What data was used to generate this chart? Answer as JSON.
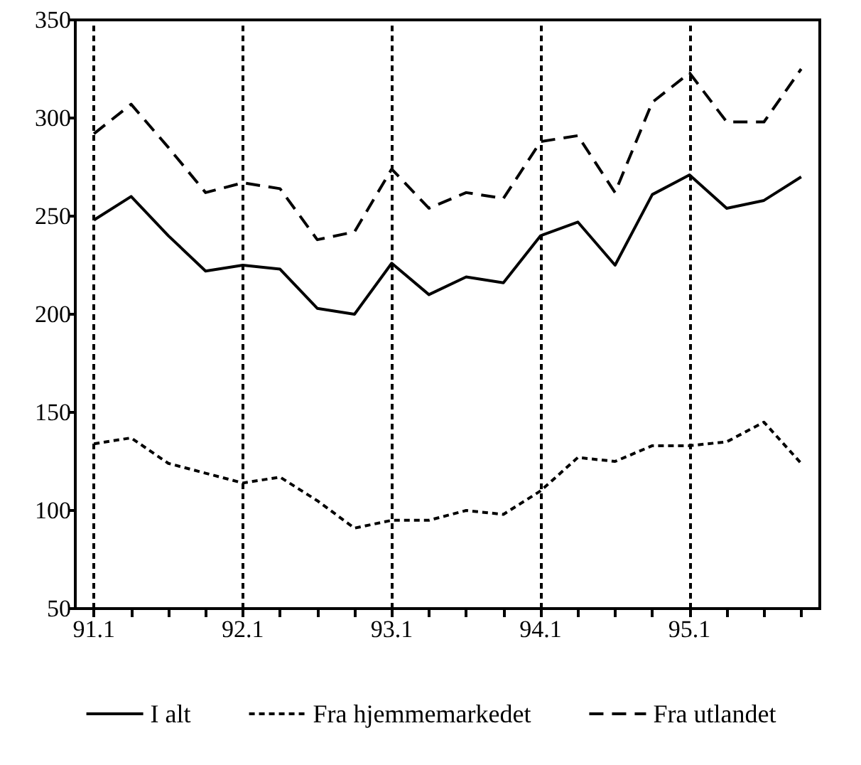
{
  "chart_data": {
    "type": "line",
    "categories": [
      "91.1",
      null,
      null,
      null,
      "92.1",
      null,
      null,
      null,
      "93.1",
      null,
      null,
      null,
      "94.1",
      null,
      null,
      null,
      "95.1",
      null,
      null,
      null
    ],
    "series": [
      {
        "name": "I alt",
        "color": "#000000",
        "line_style": "solid",
        "values": [
          248,
          260,
          240,
          222,
          225,
          223,
          203,
          200,
          226,
          210,
          219,
          216,
          240,
          247,
          225,
          261,
          271,
          254,
          258,
          270
        ]
      },
      {
        "name": "Fra hjemmemarkedet",
        "color": "#000000",
        "line_style": "dotted",
        "values": [
          134,
          137,
          124,
          119,
          114,
          117,
          105,
          91,
          95,
          95,
          100,
          98,
          110,
          127,
          125,
          133,
          133,
          135,
          145,
          124
        ]
      },
      {
        "name": "Fra utlandet",
        "color": "#000000",
        "line_style": "dashed",
        "values": [
          292,
          307,
          285,
          262,
          267,
          264,
          238,
          242,
          274,
          254,
          262,
          259,
          288,
          291,
          262,
          308,
          323,
          298,
          298,
          325
        ]
      }
    ],
    "ylim": [
      50,
      350
    ],
    "yticks": [
      50,
      100,
      150,
      200,
      250,
      300,
      350
    ],
    "ref_lines": [
      {
        "axis": "x",
        "value": "91.1",
        "color": "#000000",
        "line_style": "dotted"
      },
      {
        "axis": "x",
        "value": "92.1",
        "color": "#000000",
        "line_style": "dotted"
      },
      {
        "axis": "x",
        "value": "93.1",
        "color": "#000000",
        "line_style": "dotted"
      },
      {
        "axis": "x",
        "value": "94.1",
        "color": "#000000",
        "line_style": "dotted"
      },
      {
        "axis": "x",
        "value": "95.1",
        "color": "#000000",
        "line_style": "dotted"
      }
    ],
    "legend": "bottom",
    "marker": "none",
    "grid": false
  }
}
